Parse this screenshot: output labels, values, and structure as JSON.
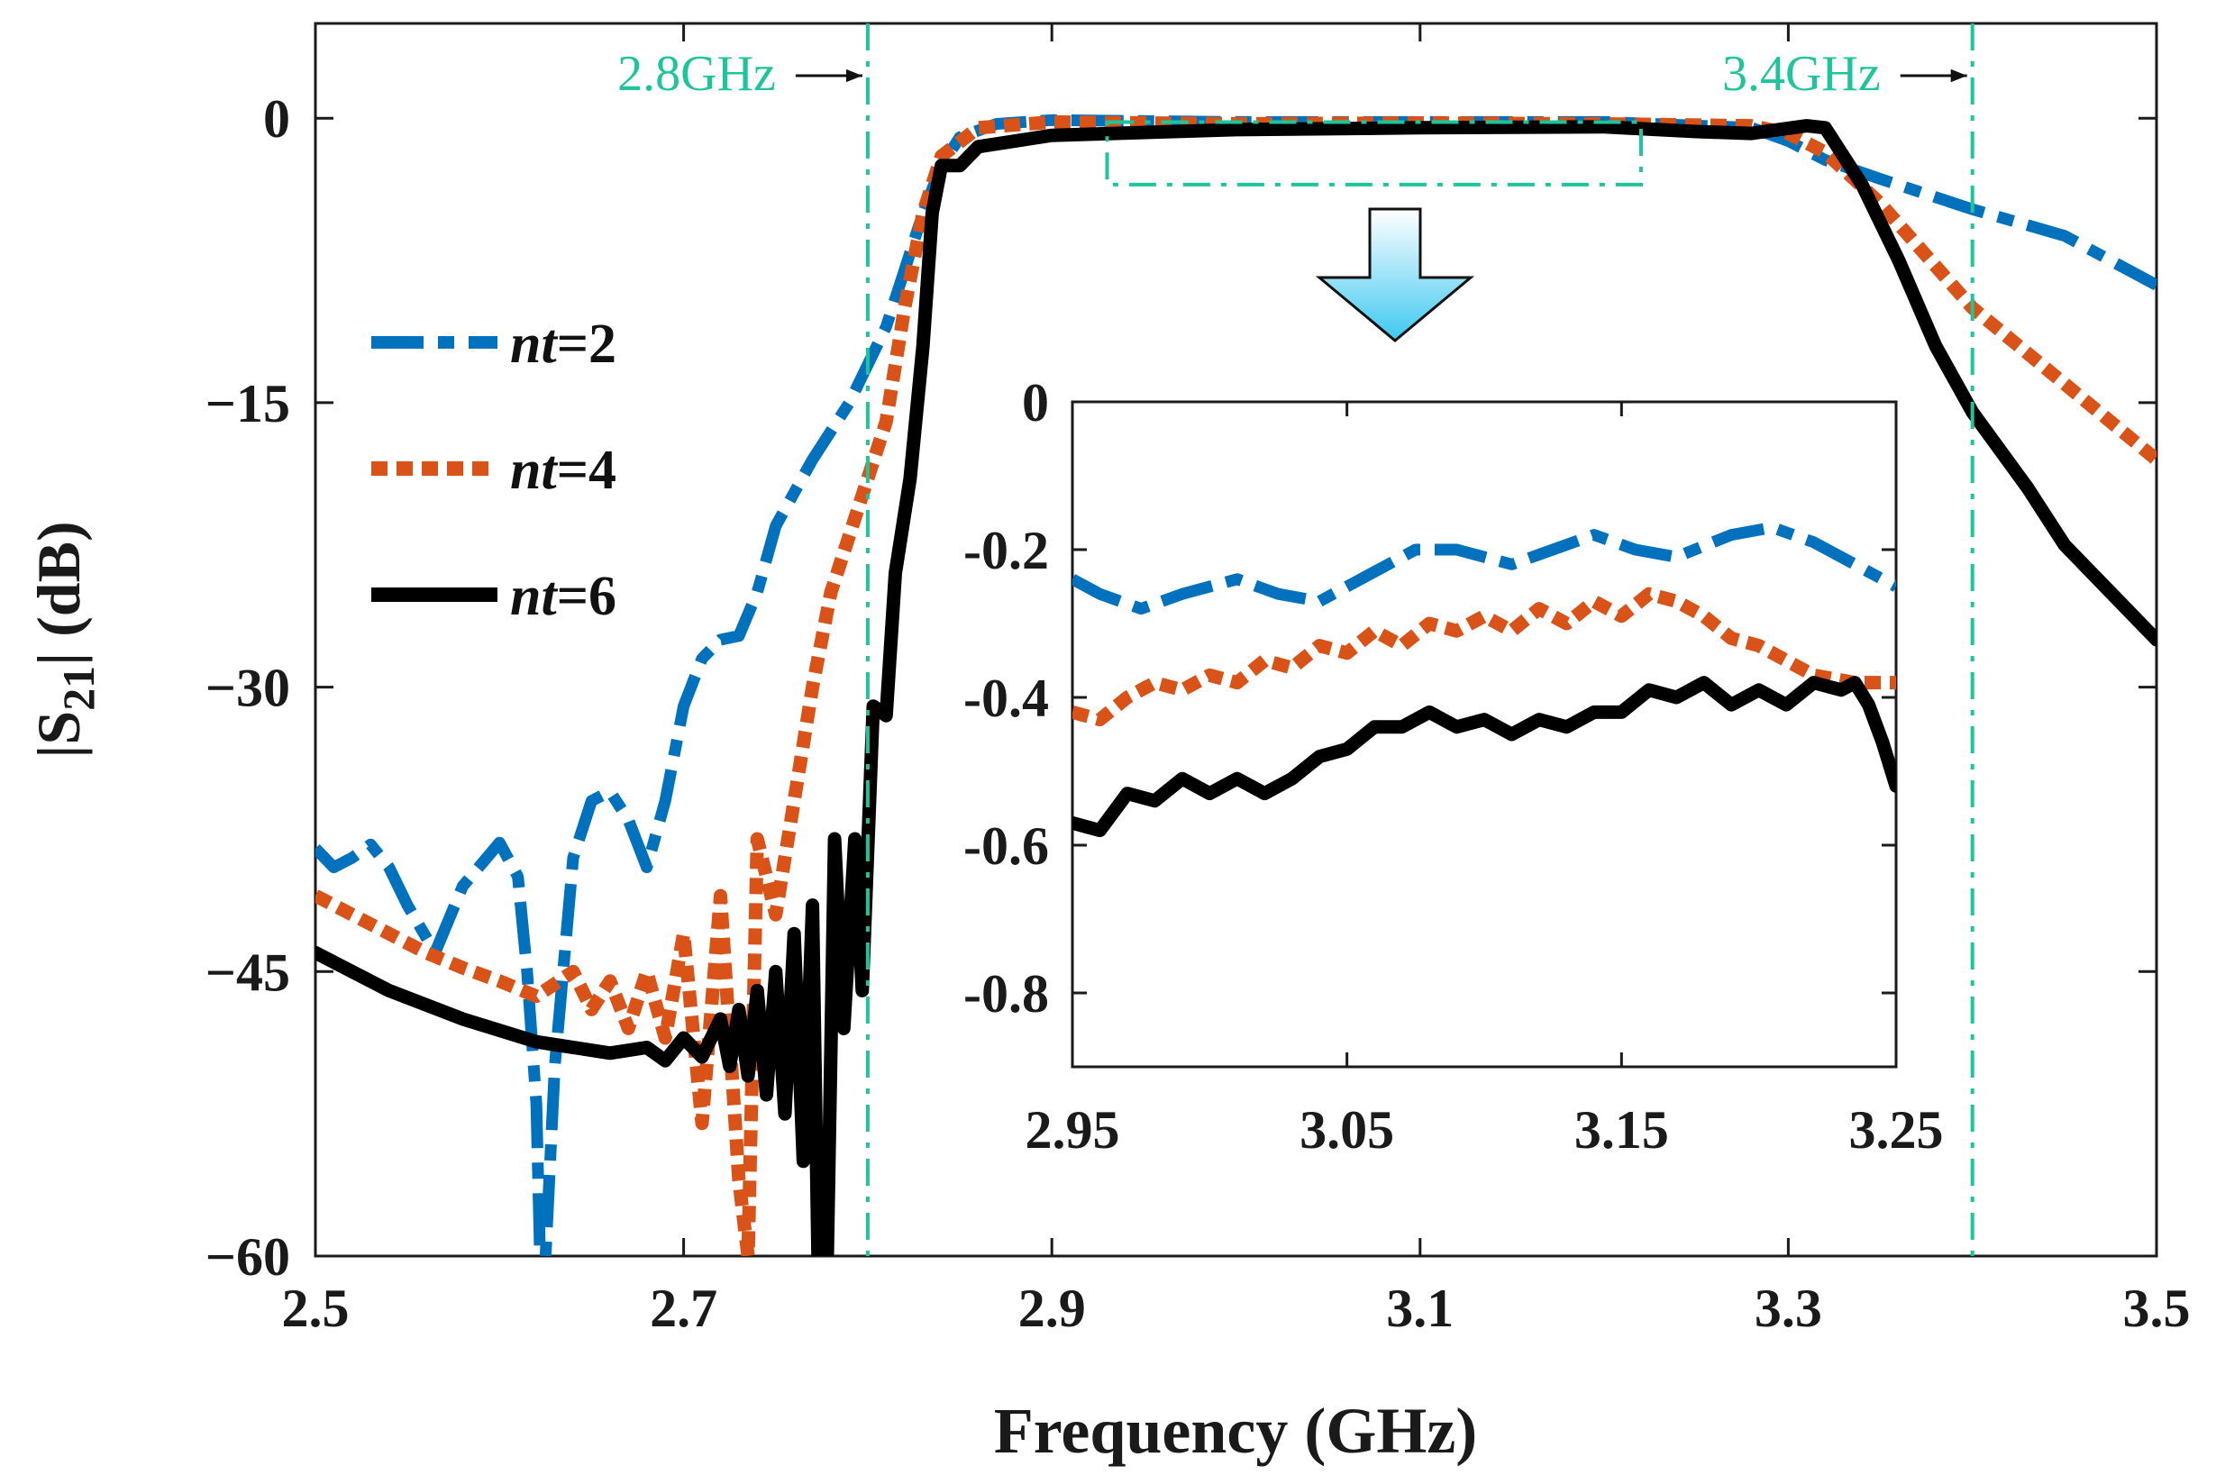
{
  "chart_data": [
    {
      "id": "main",
      "type": "line",
      "xlabel": "Frequency (GHz)",
      "ylabel_prefix": "|S",
      "ylabel_sub": "21",
      "ylabel_suffix": "| (dB)",
      "xlim": [
        2.5,
        3.5
      ],
      "ylim": [
        -60,
        5
      ],
      "xticks": [
        2.5,
        2.7,
        2.9,
        3.1,
        3.3,
        3.5
      ],
      "xtick_labels": [
        "2.5",
        "2.7",
        "2.9",
        "3.1",
        "3.3",
        "3.5"
      ],
      "yticks": [
        0,
        -15,
        -30,
        -45,
        -60
      ],
      "ytick_labels": [
        "0",
        "−15",
        "−30",
        "−45",
        "−60"
      ],
      "grid": false,
      "legend_position": "center-left",
      "series": [
        {
          "name": "nt=2",
          "legend_italic": "nt",
          "legend_rest": "=2",
          "color": "#0072bd",
          "style": "dashdot",
          "points": [
            [
              2.5,
              -38.5
            ],
            [
              2.51,
              -39.5
            ],
            [
              2.52,
              -39.0
            ],
            [
              2.53,
              -38.3
            ],
            [
              2.54,
              -39.5
            ],
            [
              2.55,
              -41.5
            ],
            [
              2.565,
              -44.0
            ],
            [
              2.58,
              -40.5
            ],
            [
              2.6,
              -38.2
            ],
            [
              2.61,
              -40.0
            ],
            [
              2.615,
              -45.0
            ],
            [
              2.62,
              -52.0
            ],
            [
              2.622,
              -60.0
            ],
            [
              2.625,
              -60.0
            ],
            [
              2.63,
              -50.0
            ],
            [
              2.64,
              -39.0
            ],
            [
              2.65,
              -36.0
            ],
            [
              2.66,
              -35.5
            ],
            [
              2.67,
              -37.0
            ],
            [
              2.68,
              -39.5
            ],
            [
              2.69,
              -36.0
            ],
            [
              2.7,
              -31.0
            ],
            [
              2.71,
              -28.5
            ],
            [
              2.72,
              -27.5
            ],
            [
              2.73,
              -27.3
            ],
            [
              2.74,
              -25.0
            ],
            [
              2.75,
              -21.5
            ],
            [
              2.77,
              -18.0
            ],
            [
              2.79,
              -15.0
            ],
            [
              2.8,
              -13.0
            ],
            [
              2.81,
              -11.0
            ],
            [
              2.82,
              -8.0
            ],
            [
              2.83,
              -5.0
            ],
            [
              2.84,
              -2.5
            ],
            [
              2.85,
              -1.0
            ],
            [
              2.87,
              -0.3
            ],
            [
              2.9,
              -0.1
            ],
            [
              3.0,
              -0.2
            ],
            [
              3.1,
              -0.2
            ],
            [
              3.2,
              -0.2
            ],
            [
              3.28,
              -0.5
            ],
            [
              3.3,
              -1.2
            ],
            [
              3.32,
              -2.2
            ],
            [
              3.35,
              -3.2
            ],
            [
              3.4,
              -4.8
            ],
            [
              3.45,
              -6.2
            ],
            [
              3.5,
              -8.8
            ]
          ]
        },
        {
          "name": "nt=4",
          "legend_italic": "nt",
          "legend_rest": "=4",
          "color": "#d95319",
          "style": "dotted",
          "points": [
            [
              2.5,
              -41.0
            ],
            [
              2.52,
              -42.0
            ],
            [
              2.54,
              -43.0
            ],
            [
              2.56,
              -44.0
            ],
            [
              2.58,
              -44.8
            ],
            [
              2.6,
              -45.5
            ],
            [
              2.62,
              -46.3
            ],
            [
              2.64,
              -45.0
            ],
            [
              2.65,
              -47.0
            ],
            [
              2.66,
              -45.5
            ],
            [
              2.67,
              -48.0
            ],
            [
              2.68,
              -45.0
            ],
            [
              2.69,
              -48.5
            ],
            [
              2.7,
              -43.0
            ],
            [
              2.71,
              -53.0
            ],
            [
              2.72,
              -41.0
            ],
            [
              2.73,
              -56.0
            ],
            [
              2.735,
              -60.0
            ],
            [
              2.74,
              -38.0
            ],
            [
              2.75,
              -42.0
            ],
            [
              2.76,
              -36.0
            ],
            [
              2.77,
              -30.0
            ],
            [
              2.78,
              -25.0
            ],
            [
              2.79,
              -22.0
            ],
            [
              2.8,
              -19.0
            ],
            [
              2.81,
              -16.0
            ],
            [
              2.82,
              -10.0
            ],
            [
              2.83,
              -5.0
            ],
            [
              2.84,
              -2.0
            ],
            [
              2.86,
              -0.5
            ],
            [
              2.9,
              -0.2
            ],
            [
              3.0,
              -0.3
            ],
            [
              3.1,
              -0.25
            ],
            [
              3.2,
              -0.3
            ],
            [
              3.28,
              -0.4
            ],
            [
              3.3,
              -0.8
            ],
            [
              3.32,
              -1.8
            ],
            [
              3.35,
              -4.5
            ],
            [
              3.4,
              -10.0
            ],
            [
              3.45,
              -14.0
            ],
            [
              3.5,
              -18.0
            ]
          ]
        },
        {
          "name": "nt=6",
          "legend_italic": "nt",
          "legend_rest": "=6",
          "color": "#000000",
          "style": "solid",
          "points": [
            [
              2.5,
              -44.0
            ],
            [
              2.54,
              -46.0
            ],
            [
              2.58,
              -47.5
            ],
            [
              2.62,
              -48.7
            ],
            [
              2.66,
              -49.3
            ],
            [
              2.68,
              -49.0
            ],
            [
              2.69,
              -49.7
            ],
            [
              2.7,
              -48.5
            ],
            [
              2.71,
              -49.5
            ],
            [
              2.72,
              -47.5
            ],
            [
              2.725,
              -50.0
            ],
            [
              2.73,
              -47.0
            ],
            [
              2.735,
              -50.5
            ],
            [
              2.74,
              -46.0
            ],
            [
              2.745,
              -51.5
            ],
            [
              2.75,
              -45.0
            ],
            [
              2.755,
              -52.5
            ],
            [
              2.76,
              -43.0
            ],
            [
              2.765,
              -55.0
            ],
            [
              2.77,
              -41.5
            ],
            [
              2.773,
              -60.0
            ],
            [
              2.778,
              -60.0
            ],
            [
              2.782,
              -38.0
            ],
            [
              2.787,
              -48.0
            ],
            [
              2.793,
              -38.0
            ],
            [
              2.797,
              -46.0
            ],
            [
              2.803,
              -31.0
            ],
            [
              2.81,
              -31.5
            ],
            [
              2.815,
              -24.0
            ],
            [
              2.823,
              -19.0
            ],
            [
              2.83,
              -12.0
            ],
            [
              2.835,
              -5.0
            ],
            [
              2.84,
              -2.5
            ],
            [
              2.85,
              -2.5
            ],
            [
              2.86,
              -1.5
            ],
            [
              2.9,
              -0.9
            ],
            [
              3.0,
              -0.6
            ],
            [
              3.1,
              -0.5
            ],
            [
              3.2,
              -0.45
            ],
            [
              3.25,
              -0.7
            ],
            [
              3.28,
              -0.8
            ],
            [
              3.31,
              -0.4
            ],
            [
              3.32,
              -0.5
            ],
            [
              3.34,
              -3.5
            ],
            [
              3.36,
              -7.5
            ],
            [
              3.38,
              -12.0
            ],
            [
              3.4,
              -15.5
            ],
            [
              3.43,
              -19.5
            ],
            [
              3.45,
              -22.5
            ],
            [
              3.46,
              -23.5
            ],
            [
              3.48,
              -25.5
            ],
            [
              3.5,
              -27.5
            ]
          ]
        }
      ],
      "annotations": [
        {
          "text": "2.8GHz",
          "x": 2.8
        },
        {
          "text": "3.4GHz",
          "x": 3.4
        }
      ],
      "highlight_region": {
        "x": [
          2.93,
          3.22
        ],
        "y": [
          -0.2,
          -3.5
        ]
      }
    },
    {
      "id": "inset",
      "type": "line",
      "xlim": [
        2.95,
        3.25
      ],
      "ylim": [
        -0.9,
        0.0
      ],
      "xticks": [
        2.95,
        3.05,
        3.15,
        3.25
      ],
      "xtick_labels": [
        "2.95",
        "3.05",
        "3.15",
        "3.25"
      ],
      "yticks": [
        0.0,
        -0.2,
        -0.4,
        -0.6,
        -0.8
      ],
      "ytick_labels": [
        "0",
        "-0.2",
        "-0.4",
        "-0.6",
        "-0.8"
      ],
      "grid": false,
      "series": [
        {
          "name": "nt=2",
          "color": "#0072bd",
          "style": "dashdot",
          "points": [
            [
              2.95,
              -0.24
            ],
            [
              2.96,
              -0.26
            ],
            [
              2.975,
              -0.28
            ],
            [
              2.99,
              -0.26
            ],
            [
              3.01,
              -0.24
            ],
            [
              3.025,
              -0.26
            ],
            [
              3.04,
              -0.27
            ],
            [
              3.055,
              -0.24
            ],
            [
              3.075,
              -0.2
            ],
            [
              3.09,
              -0.2
            ],
            [
              3.11,
              -0.22
            ],
            [
              3.125,
              -0.2
            ],
            [
              3.14,
              -0.18
            ],
            [
              3.155,
              -0.2
            ],
            [
              3.17,
              -0.21
            ],
            [
              3.19,
              -0.18
            ],
            [
              3.205,
              -0.17
            ],
            [
              3.22,
              -0.19
            ],
            [
              3.235,
              -0.22
            ],
            [
              3.25,
              -0.25
            ]
          ]
        },
        {
          "name": "nt=4",
          "color": "#d95319",
          "style": "dotted",
          "points": [
            [
              2.95,
              -0.42
            ],
            [
              2.96,
              -0.43
            ],
            [
              2.97,
              -0.4
            ],
            [
              2.98,
              -0.38
            ],
            [
              2.99,
              -0.39
            ],
            [
              3.0,
              -0.37
            ],
            [
              3.01,
              -0.38
            ],
            [
              3.02,
              -0.35
            ],
            [
              3.03,
              -0.36
            ],
            [
              3.04,
              -0.33
            ],
            [
              3.05,
              -0.34
            ],
            [
              3.06,
              -0.31
            ],
            [
              3.07,
              -0.33
            ],
            [
              3.08,
              -0.3
            ],
            [
              3.09,
              -0.31
            ],
            [
              3.1,
              -0.29
            ],
            [
              3.11,
              -0.31
            ],
            [
              3.12,
              -0.28
            ],
            [
              3.13,
              -0.3
            ],
            [
              3.14,
              -0.27
            ],
            [
              3.15,
              -0.29
            ],
            [
              3.16,
              -0.26
            ],
            [
              3.17,
              -0.27
            ],
            [
              3.18,
              -0.29
            ],
            [
              3.19,
              -0.32
            ],
            [
              3.2,
              -0.33
            ],
            [
              3.21,
              -0.35
            ],
            [
              3.22,
              -0.37
            ],
            [
              3.235,
              -0.38
            ],
            [
              3.25,
              -0.38
            ]
          ]
        },
        {
          "name": "nt=6",
          "color": "#000000",
          "style": "solid",
          "points": [
            [
              2.95,
              -0.57
            ],
            [
              2.96,
              -0.58
            ],
            [
              2.97,
              -0.53
            ],
            [
              2.98,
              -0.54
            ],
            [
              2.99,
              -0.51
            ],
            [
              3.0,
              -0.53
            ],
            [
              3.01,
              -0.51
            ],
            [
              3.02,
              -0.53
            ],
            [
              3.03,
              -0.51
            ],
            [
              3.04,
              -0.48
            ],
            [
              3.05,
              -0.47
            ],
            [
              3.06,
              -0.44
            ],
            [
              3.07,
              -0.44
            ],
            [
              3.08,
              -0.42
            ],
            [
              3.09,
              -0.44
            ],
            [
              3.1,
              -0.43
            ],
            [
              3.11,
              -0.45
            ],
            [
              3.12,
              -0.43
            ],
            [
              3.13,
              -0.44
            ],
            [
              3.14,
              -0.42
            ],
            [
              3.15,
              -0.42
            ],
            [
              3.16,
              -0.39
            ],
            [
              3.17,
              -0.4
            ],
            [
              3.18,
              -0.38
            ],
            [
              3.19,
              -0.41
            ],
            [
              3.2,
              -0.39
            ],
            [
              3.21,
              -0.41
            ],
            [
              3.22,
              -0.38
            ],
            [
              3.23,
              -0.39
            ],
            [
              3.235,
              -0.38
            ],
            [
              3.24,
              -0.41
            ],
            [
              3.245,
              -0.46
            ],
            [
              3.25,
              -0.52
            ]
          ]
        }
      ]
    }
  ]
}
